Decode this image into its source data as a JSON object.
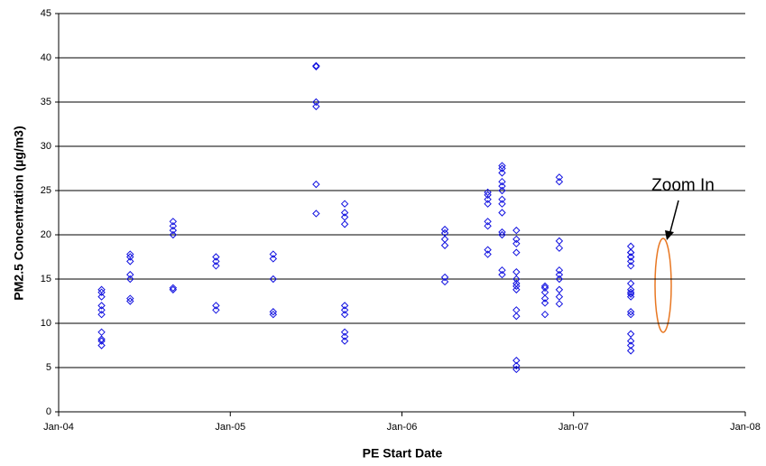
{
  "chart_data": {
    "type": "scatter",
    "x_label": "PE Start Date",
    "y_label": "PM2.5 Concentration (µg/m3)",
    "annotation": "Zoom In",
    "xlim": [
      "2004-01",
      "2008-01"
    ],
    "xticks": [
      {
        "value": "2004-01",
        "label": "Jan-04"
      },
      {
        "value": "2005-01",
        "label": "Jan-05"
      },
      {
        "value": "2006-01",
        "label": "Jan-06"
      },
      {
        "value": "2007-01",
        "label": "Jan-07"
      },
      {
        "value": "2008-01",
        "label": "Jan-08"
      }
    ],
    "ylim": [
      0,
      45
    ],
    "yticks": [
      0,
      5,
      10,
      15,
      20,
      25,
      30,
      35,
      40,
      45
    ],
    "grid": true,
    "series": [
      {
        "color": "#1010e0",
        "x": [
          "2004-04",
          "2004-04",
          "2004-04",
          "2004-04",
          "2004-04",
          "2004-04",
          "2004-04",
          "2004-04",
          "2004-04",
          "2004-04",
          "2004-06",
          "2004-06",
          "2004-06",
          "2004-06",
          "2004-06",
          "2004-06",
          "2004-06",
          "2004-09",
          "2004-09",
          "2004-09",
          "2004-09",
          "2004-09",
          "2004-09",
          "2004-12",
          "2004-12",
          "2004-12",
          "2004-12",
          "2004-12",
          "2005-04",
          "2005-04",
          "2005-04",
          "2005-04",
          "2005-04",
          "2005-07",
          "2005-07",
          "2005-07",
          "2005-07",
          "2005-07",
          "2005-07",
          "2005-09",
          "2005-09",
          "2005-09",
          "2005-09",
          "2005-09",
          "2005-09",
          "2005-09",
          "2005-09",
          "2005-09",
          "2005-09",
          "2006-04",
          "2006-04",
          "2006-04",
          "2006-04",
          "2006-04",
          "2006-04",
          "2006-07",
          "2006-07",
          "2006-07",
          "2006-07",
          "2006-07",
          "2006-07",
          "2006-07",
          "2006-07",
          "2006-08",
          "2006-08",
          "2006-08",
          "2006-08",
          "2006-08",
          "2006-08",
          "2006-08",
          "2006-08",
          "2006-08",
          "2006-08",
          "2006-08",
          "2006-08",
          "2006-08",
          "2006-09",
          "2006-09",
          "2006-09",
          "2006-09",
          "2006-09",
          "2006-09",
          "2006-09",
          "2006-09",
          "2006-09",
          "2006-09",
          "2006-09",
          "2006-09",
          "2006-09",
          "2006-09",
          "2006-11",
          "2006-11",
          "2006-11",
          "2006-11",
          "2006-11",
          "2006-11",
          "2006-12",
          "2006-12",
          "2006-12",
          "2006-12",
          "2006-12",
          "2006-12",
          "2006-12",
          "2006-12",
          "2006-12",
          "2006-12",
          "2007-05",
          "2007-05",
          "2007-05",
          "2007-05",
          "2007-05",
          "2007-05",
          "2007-05",
          "2007-05",
          "2007-05",
          "2007-05",
          "2007-05",
          "2007-05",
          "2007-05",
          "2007-05",
          "2007-05",
          "2007-05",
          "2007-05",
          "2007-05"
        ],
        "y": [
          7.5,
          8,
          8.2,
          11,
          11.5,
          12,
          13,
          13.5,
          13.8,
          9,
          12.5,
          12.8,
          15,
          15.5,
          17,
          17.5,
          17.8,
          13.8,
          14,
          20,
          20.5,
          21,
          21.5,
          11.5,
          12,
          16.5,
          17,
          17.5,
          11,
          11.3,
          15,
          17.3,
          17.8,
          22.4,
          25.7,
          34.5,
          35,
          39,
          39.1,
          8,
          8.5,
          9,
          11,
          11.5,
          12,
          21.2,
          22,
          22.5,
          23.5,
          14.7,
          15.2,
          18.8,
          19.5,
          20.2,
          20.6,
          17.8,
          18.3,
          21,
          21.5,
          23.5,
          24,
          24.5,
          24.8,
          15.5,
          16,
          20,
          20.3,
          22.5,
          23.5,
          24,
          25,
          25.5,
          26,
          27,
          27.5,
          27.8,
          4.8,
          5.2,
          5.8,
          10.8,
          11.5,
          13.8,
          14.2,
          14.5,
          15,
          15.8,
          18,
          19,
          19.5,
          20.5,
          11,
          12.3,
          12.8,
          13.5,
          14,
          14.2,
          12.2,
          13,
          13.8,
          15,
          15.5,
          16,
          18.5,
          19.3,
          26,
          26.5,
          6.9,
          7.5,
          8,
          8.8,
          13.3,
          13.8,
          17.5,
          18,
          18.7,
          11,
          11.3,
          13,
          13.5,
          14.5,
          16.5,
          17,
          17.5,
          18
        ]
      }
    ]
  }
}
